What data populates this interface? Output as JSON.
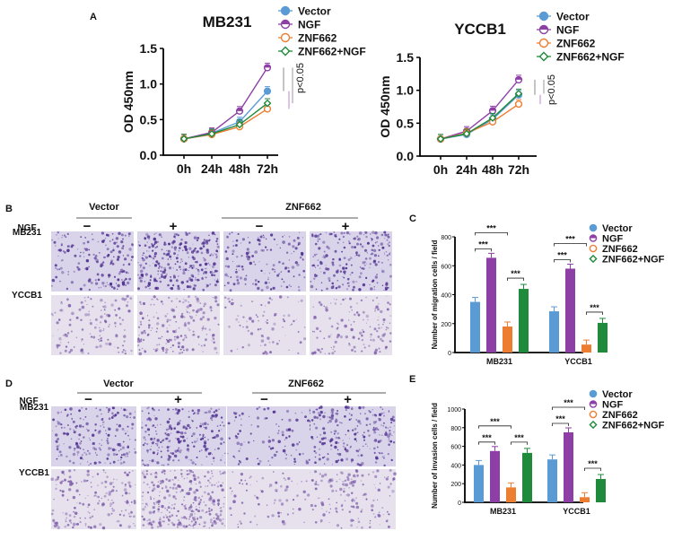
{
  "panels": {
    "A": "A",
    "B": "B",
    "C": "C",
    "D": "D",
    "E": "E"
  },
  "colors": {
    "vector": "#5b9bd5",
    "ngf": "#8e3fa6",
    "znf662": "#ed7d31",
    "znf662_ngf": "#1f8a3b",
    "stain_mb231": "#4a2a8c",
    "stain_yccb1": "#7a5aa8"
  },
  "chart_data": [
    {
      "type": "line",
      "title": "MB231",
      "xlabel": "",
      "ylabel": "OD 450nm",
      "categories": [
        "0h",
        "24h",
        "48h",
        "72h"
      ],
      "yticks": [
        "0.0",
        "0.5",
        "1.0",
        "1.5"
      ],
      "ylim": [
        0,
        1.5
      ],
      "series": [
        {
          "name": "Vector",
          "key": "vector",
          "marker": "circle",
          "filled": true,
          "values": [
            0.23,
            0.31,
            0.47,
            0.9
          ]
        },
        {
          "name": "NGF",
          "key": "ngf",
          "marker": "halfcircle",
          "filled": true,
          "values": [
            0.23,
            0.32,
            0.62,
            1.23
          ]
        },
        {
          "name": "ZNF662",
          "key": "znf662",
          "marker": "circle",
          "filled": false,
          "values": [
            0.23,
            0.29,
            0.4,
            0.65
          ]
        },
        {
          "name": "ZNF662+NGF",
          "key": "znf662_ngf",
          "marker": "diamond",
          "filled": false,
          "values": [
            0.23,
            0.3,
            0.43,
            0.73
          ]
        }
      ],
      "annotation": "p<0.05",
      "legend": "top-right"
    },
    {
      "type": "line",
      "title": "YCCB1",
      "xlabel": "",
      "ylabel": "OD 450nm",
      "categories": [
        "0h",
        "24h",
        "48h",
        "72h"
      ],
      "yticks": [
        "0.0",
        "0.5",
        "1.0",
        "1.5"
      ],
      "ylim": [
        0,
        1.5
      ],
      "series": [
        {
          "name": "Vector",
          "key": "vector",
          "marker": "circle",
          "filled": true,
          "values": [
            0.26,
            0.33,
            0.56,
            0.93
          ]
        },
        {
          "name": "NGF",
          "key": "ngf",
          "marker": "halfcircle",
          "filled": true,
          "values": [
            0.26,
            0.38,
            0.69,
            1.16
          ]
        },
        {
          "name": "ZNF662",
          "key": "znf662",
          "marker": "circle",
          "filled": false,
          "values": [
            0.26,
            0.35,
            0.52,
            0.79
          ]
        },
        {
          "name": "ZNF662+NGF",
          "key": "znf662_ngf",
          "marker": "diamond",
          "filled": false,
          "values": [
            0.26,
            0.34,
            0.58,
            0.95
          ]
        }
      ],
      "annotation": "p<0.05",
      "legend": "top-right"
    },
    {
      "type": "bar",
      "title": "",
      "xlabel": "",
      "ylabel": "Number of migration cells / field",
      "categories": [
        "MB231",
        "YCCB1"
      ],
      "yticks": [
        "0",
        "200",
        "400",
        "600",
        "800"
      ],
      "ylim": [
        0,
        800
      ],
      "series": [
        {
          "name": "Vector",
          "key": "vector",
          "marker": "circle",
          "values": [
            350,
            285
          ]
        },
        {
          "name": "NGF",
          "key": "ngf",
          "marker": "halfcircle",
          "values": [
            655,
            580
          ]
        },
        {
          "name": "ZNF662",
          "key": "znf662",
          "marker": "circle",
          "values": [
            180,
            55
          ]
        },
        {
          "name": "ZNF662+NGF",
          "key": "znf662_ngf",
          "marker": "diamond",
          "values": [
            440,
            205
          ]
        }
      ],
      "significance": "***",
      "legend": "top-right"
    },
    {
      "type": "bar",
      "title": "",
      "xlabel": "",
      "ylabel": "Number of invasion cells / field",
      "categories": [
        "MB231",
        "YCCB1"
      ],
      "yticks": [
        "0",
        "200",
        "400",
        "600",
        "800",
        "1000"
      ],
      "ylim": [
        0,
        1000
      ],
      "series": [
        {
          "name": "Vector",
          "key": "vector",
          "marker": "circle",
          "values": [
            400,
            460
          ]
        },
        {
          "name": "NGF",
          "key": "ngf",
          "marker": "halfcircle",
          "values": [
            550,
            750
          ]
        },
        {
          "name": "ZNF662",
          "key": "znf662",
          "marker": "circle",
          "values": [
            160,
            55
          ]
        },
        {
          "name": "ZNF662+NGF",
          "key": "znf662_ngf",
          "marker": "diamond",
          "values": [
            530,
            250
          ]
        }
      ],
      "significance": "***",
      "legend": "top-right"
    }
  ],
  "micrographs": [
    {
      "panel": "B",
      "groups": [
        "Vector",
        "ZNF662"
      ],
      "treatment_label": "NGF",
      "signs": [
        "−",
        "+",
        "−",
        "+"
      ],
      "rows": [
        "MB231",
        "YCCB1"
      ],
      "density": [
        [
          0.55,
          0.95,
          0.4,
          0.7
        ],
        [
          0.35,
          0.55,
          0.15,
          0.35
        ]
      ]
    },
    {
      "panel": "D",
      "groups": [
        "Vector",
        "ZNF662"
      ],
      "treatment_label": "NGF",
      "signs": [
        "−",
        "+",
        "−",
        "+"
      ],
      "rows": [
        "MB231",
        "YCCB1"
      ],
      "density": [
        [
          0.6,
          0.75,
          0.25,
          0.7
        ],
        [
          0.5,
          1.0,
          0.15,
          0.45
        ]
      ]
    }
  ]
}
